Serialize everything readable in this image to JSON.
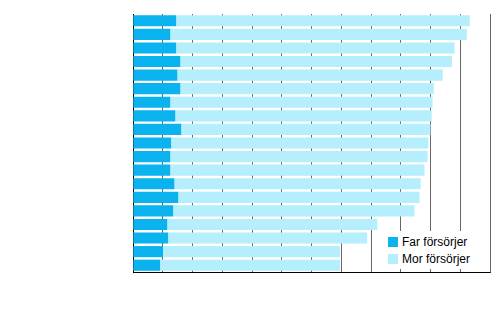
{
  "chart_data": {
    "type": "bar",
    "orientation": "horizontal",
    "stacked": true,
    "categories": [
      null,
      null,
      null,
      null,
      null,
      null,
      null,
      null,
      null,
      null,
      null,
      null,
      null,
      null,
      null,
      null,
      null,
      null,
      null
    ],
    "series": [
      {
        "name": "Far försörjer",
        "color": "#0ab2ee",
        "values": [
          14.5,
          12.5,
          14.5,
          15.9,
          14.9,
          15.9,
          12.5,
          14.2,
          16.2,
          12.8,
          12.5,
          12.5,
          13.9,
          15.2,
          13.5,
          11.5,
          11.8,
          10.1,
          9.1
        ]
      },
      {
        "name": "Mor försörjer",
        "color": "#b5eefc",
        "values": [
          98.7,
          99.7,
          93.6,
          91.3,
          89.2,
          85.2,
          88.2,
          86.2,
          83.8,
          86.5,
          86.5,
          85.5,
          82.8,
          81.1,
          81.1,
          70.6,
          66.9,
          59.5,
          60.5
        ]
      }
    ],
    "xlim": [
      0,
      120
    ],
    "xticks": [
      0,
      10,
      20,
      30,
      40,
      50,
      60,
      70,
      80,
      90,
      100,
      110,
      120
    ],
    "grid": true,
    "legend": "lower right",
    "tick_labels": false
  }
}
